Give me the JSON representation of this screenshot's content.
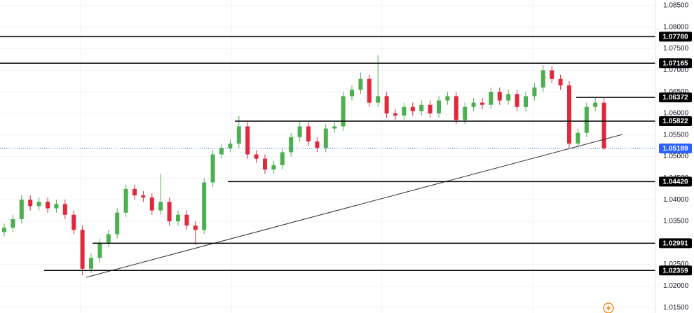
{
  "chart_data": {
    "type": "candlestick",
    "series": [
      {
        "up_color": "#4caf50",
        "down_color": "#e0293d",
        "open": [
          1.0325,
          1.0335,
          1.0355,
          1.04,
          1.0385,
          1.0395,
          1.038,
          1.039,
          1.0365,
          1.033,
          1.024,
          1.0265,
          1.03,
          1.032,
          1.037,
          1.0425,
          1.041,
          1.0405,
          1.0375,
          1.0395,
          1.035,
          1.0365,
          1.034,
          1.033,
          1.044,
          1.0505,
          1.052,
          1.053,
          1.057,
          1.0505,
          1.0495,
          1.047,
          1.048,
          1.051,
          1.0545,
          1.057,
          1.0535,
          1.052,
          1.0565,
          1.057,
          1.064,
          1.0655,
          1.068,
          1.0625,
          1.064,
          1.06,
          1.0595,
          1.0615,
          1.0605,
          1.062,
          1.06,
          1.063,
          1.064,
          1.0585,
          1.0615,
          1.0625,
          1.062,
          1.065,
          1.063,
          1.0645,
          1.0615,
          1.064,
          1.066,
          1.07,
          1.068,
          1.0665,
          1.053,
          1.0555,
          1.0615,
          1.0625
        ],
        "high": [
          1.0345,
          1.0365,
          1.041,
          1.041,
          1.0405,
          1.0405,
          1.04,
          1.04,
          1.0375,
          1.034,
          1.0275,
          1.031,
          1.033,
          1.038,
          1.0435,
          1.0435,
          1.042,
          1.0415,
          1.046,
          1.0405,
          1.0375,
          1.0375,
          1.035,
          1.045,
          1.0515,
          1.053,
          1.054,
          1.0595,
          1.058,
          1.0515,
          1.0505,
          1.049,
          1.052,
          1.0555,
          1.058,
          1.058,
          1.0545,
          1.0575,
          1.058,
          1.065,
          1.0665,
          1.0695,
          1.069,
          1.0735,
          1.065,
          1.061,
          1.0625,
          1.0625,
          1.063,
          1.063,
          1.064,
          1.065,
          1.065,
          1.0625,
          1.0635,
          1.0635,
          1.066,
          1.066,
          1.0655,
          1.0655,
          1.065,
          1.067,
          1.0712,
          1.071,
          1.069,
          1.0675,
          1.0565,
          1.0625,
          1.0637,
          1.0635
        ],
        "low": [
          1.0315,
          1.0325,
          1.0345,
          1.0375,
          1.0375,
          1.037,
          1.037,
          1.0355,
          1.032,
          1.0225,
          1.023,
          1.0255,
          1.029,
          1.031,
          1.036,
          1.04,
          1.0395,
          1.0365,
          1.0365,
          1.034,
          1.034,
          1.033,
          1.0295,
          1.032,
          1.043,
          1.0495,
          1.051,
          1.052,
          1.0495,
          1.0485,
          1.046,
          1.046,
          1.047,
          1.05,
          1.0535,
          1.0525,
          1.051,
          1.051,
          1.0555,
          1.056,
          1.063,
          1.0645,
          1.0615,
          1.0615,
          1.059,
          1.0585,
          1.0585,
          1.0595,
          1.0595,
          1.059,
          1.059,
          1.062,
          1.0575,
          1.0575,
          1.0605,
          1.061,
          1.061,
          1.062,
          1.062,
          1.0605,
          1.0605,
          1.063,
          1.065,
          1.067,
          1.0655,
          1.052,
          1.052,
          1.0545,
          1.0605,
          1.0515
        ],
        "close": [
          1.0335,
          1.0355,
          1.04,
          1.0385,
          1.0395,
          1.038,
          1.039,
          1.0365,
          1.033,
          1.024,
          1.0265,
          1.03,
          1.032,
          1.037,
          1.0425,
          1.041,
          1.0405,
          1.0375,
          1.0395,
          1.035,
          1.0365,
          1.034,
          1.033,
          1.044,
          1.0505,
          1.052,
          1.053,
          1.057,
          1.0505,
          1.0495,
          1.047,
          1.048,
          1.051,
          1.0545,
          1.057,
          1.0535,
          1.052,
          1.0565,
          1.057,
          1.064,
          1.0655,
          1.068,
          1.0625,
          1.064,
          1.06,
          1.0595,
          1.0615,
          1.0605,
          1.062,
          1.06,
          1.063,
          1.064,
          1.0585,
          1.0615,
          1.0625,
          1.062,
          1.065,
          1.063,
          1.0645,
          1.0615,
          1.064,
          1.066,
          1.07,
          1.068,
          1.0665,
          1.053,
          1.0555,
          1.0615,
          1.0625,
          1.0519
        ]
      }
    ],
    "ylim": [
      1.01373,
      1.0863
    ],
    "yticks": [
      {
        "value": 1.085,
        "label": "1.08500"
      },
      {
        "value": 1.08,
        "label": "1.08000"
      },
      {
        "value": 1.075,
        "label": "1.07500"
      },
      {
        "value": 1.07,
        "label": "1.07000"
      },
      {
        "value": 1.065,
        "label": "1.06500"
      },
      {
        "value": 1.06,
        "label": "1.06000"
      },
      {
        "value": 1.055,
        "label": "1.05500"
      },
      {
        "value": 1.05,
        "label": "1.05000"
      },
      {
        "value": 1.045,
        "label": "1.04500"
      },
      {
        "value": 1.04,
        "label": "1.04000"
      },
      {
        "value": 1.035,
        "label": "1.03500"
      },
      {
        "value": 1.03,
        "label": "1.03000"
      },
      {
        "value": 1.025,
        "label": "1.02500"
      },
      {
        "value": 1.02,
        "label": "1.02000"
      },
      {
        "value": 1.015,
        "label": "1.01500"
      }
    ],
    "grid": true,
    "levels": [
      {
        "value": 1.0778,
        "label": "1.07780"
      },
      {
        "value": 1.07165,
        "label": "1.07165"
      },
      {
        "value": 1.06372,
        "label": "1.06372"
      },
      {
        "value": 1.05822,
        "label": "1.05822"
      },
      {
        "value": 1.0442,
        "label": "1.04420"
      },
      {
        "value": 1.02991,
        "label": "1.02991"
      },
      {
        "value": 1.02359,
        "label": "1.02359"
      }
    ],
    "level_color": "#000000",
    "current_price": {
      "value": 1.05189,
      "label": "1.05189",
      "color": "#2962ff"
    }
  }
}
